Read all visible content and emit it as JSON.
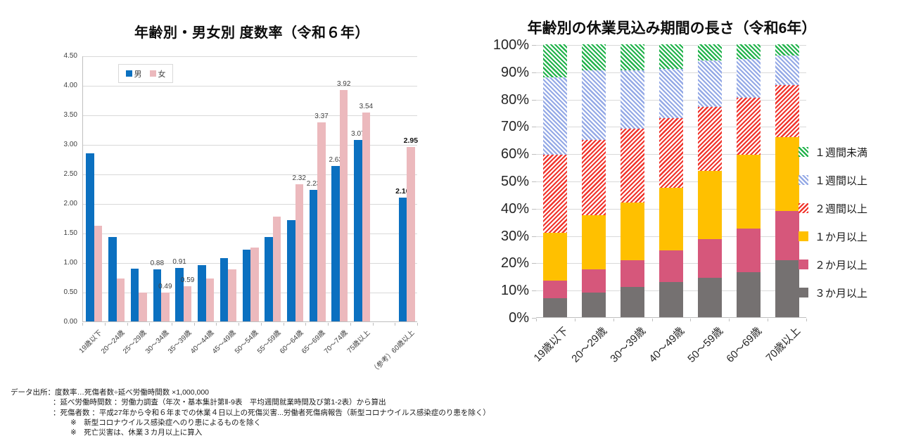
{
  "chart_data": [
    {
      "type": "bar",
      "title": "年齢別・男女別 度数率（令和６年）",
      "xlabel": "",
      "ylabel": "",
      "ylim": [
        0,
        4.5
      ],
      "y_ticks": [
        "0.00",
        "0.50",
        "1.00",
        "1.50",
        "2.00",
        "2.50",
        "3.00",
        "3.50",
        "4.00",
        "4.50"
      ],
      "grid": true,
      "legend_position": "top-inside",
      "gap_before_last_category": true,
      "categories": [
        "19歳以下",
        "20～24歳",
        "25～29歳",
        "30～34歳",
        "35～39歳",
        "40～44歳",
        "45～49歳",
        "50～54歳",
        "55～59歳",
        "60～64歳",
        "65～69歳",
        "70～74歳",
        "75歳以上",
        "（参考）60歳以上"
      ],
      "series": [
        {
          "name": "男",
          "color": "#0B70C0",
          "values": [
            2.84,
            1.43,
            0.89,
            0.88,
            0.91,
            0.95,
            1.07,
            1.22,
            1.43,
            1.72,
            2.23,
            2.63,
            3.07,
            2.1
          ],
          "point_labels": [
            "",
            "",
            "",
            "0.88",
            "0.91",
            "",
            "",
            "",
            "",
            "",
            "2.23",
            "2.63",
            "3.07",
            "2.10"
          ]
        },
        {
          "name": "女",
          "color": "#ECB9BD",
          "values": [
            1.62,
            0.73,
            0.49,
            0.49,
            0.59,
            0.73,
            0.88,
            1.25,
            1.78,
            2.32,
            3.37,
            3.92,
            3.54,
            2.95
          ],
          "point_labels": [
            "",
            "",
            "",
            "0.49",
            "0.59",
            "",
            "",
            "",
            "",
            "2.32",
            "3.37",
            "3.92",
            "3.54",
            "2.95"
          ]
        }
      ],
      "bold_label_categories": [
        13
      ]
    },
    {
      "type": "stacked-bar-100",
      "title": "年齢別の休業見込み期間の長さ（令和6年）",
      "xlabel": "",
      "ylabel": "",
      "ylim": [
        0,
        100
      ],
      "y_ticks": [
        "0%",
        "10%",
        "20%",
        "30%",
        "40%",
        "50%",
        "60%",
        "70%",
        "80%",
        "90%",
        "100%"
      ],
      "grid": true,
      "legend_position": "right",
      "stack_order": "bottom-to-top",
      "categories": [
        "19歳以下",
        "20～29歳",
        "30～39歳",
        "40～49歳",
        "50～59歳",
        "60～69歳",
        "70歳以上"
      ],
      "series": [
        {
          "name": "３か月以上",
          "color": "#757171",
          "pattern": "solid",
          "values": [
            7,
            9,
            11,
            13,
            14.5,
            16.5,
            21
          ]
        },
        {
          "name": "２か月以上",
          "color": "#D6577B",
          "pattern": "solid",
          "values": [
            6.5,
            8.5,
            10,
            11.5,
            14,
            16,
            18
          ]
        },
        {
          "name": "１か月以上",
          "color": "#FFC000",
          "pattern": "solid",
          "values": [
            17.5,
            20,
            21,
            23,
            25,
            27,
            27
          ]
        },
        {
          "name": "２週間以上",
          "color": "#F1342C",
          "pattern": "hatch-up",
          "values": [
            28.5,
            27.5,
            27,
            25.5,
            23.5,
            21,
            19
          ]
        },
        {
          "name": "１週間以上",
          "color": "#94A9E6",
          "pattern": "hatch-down",
          "values": [
            28.5,
            25.5,
            21.5,
            18,
            17,
            14,
            11
          ]
        },
        {
          "name": "１週間未満",
          "color": "#21B24B",
          "pattern": "hatch-down",
          "values": [
            12,
            9.5,
            9.5,
            9,
            6,
            5.5,
            4
          ]
        }
      ]
    }
  ],
  "footnotes": [
    "データ出所：度数率…死傷者数÷延べ労働時間数 ×1,000,000",
    "：延べ労働時間数 ：労働力調査（年次・基本集計第Ⅱ-9表　平均週間就業時間及び第1-2表）から算出",
    "：死傷者数 ：平成27年から令和６年までの休業４日以上の死傷災害...労働者死傷病報告（新型コロナウイルス感染症のり患を除く）",
    "※　新型コロナウイルス感染症へのり患によるものを除く",
    "※　死亡災害は、休業３カ月以上に算入"
  ]
}
